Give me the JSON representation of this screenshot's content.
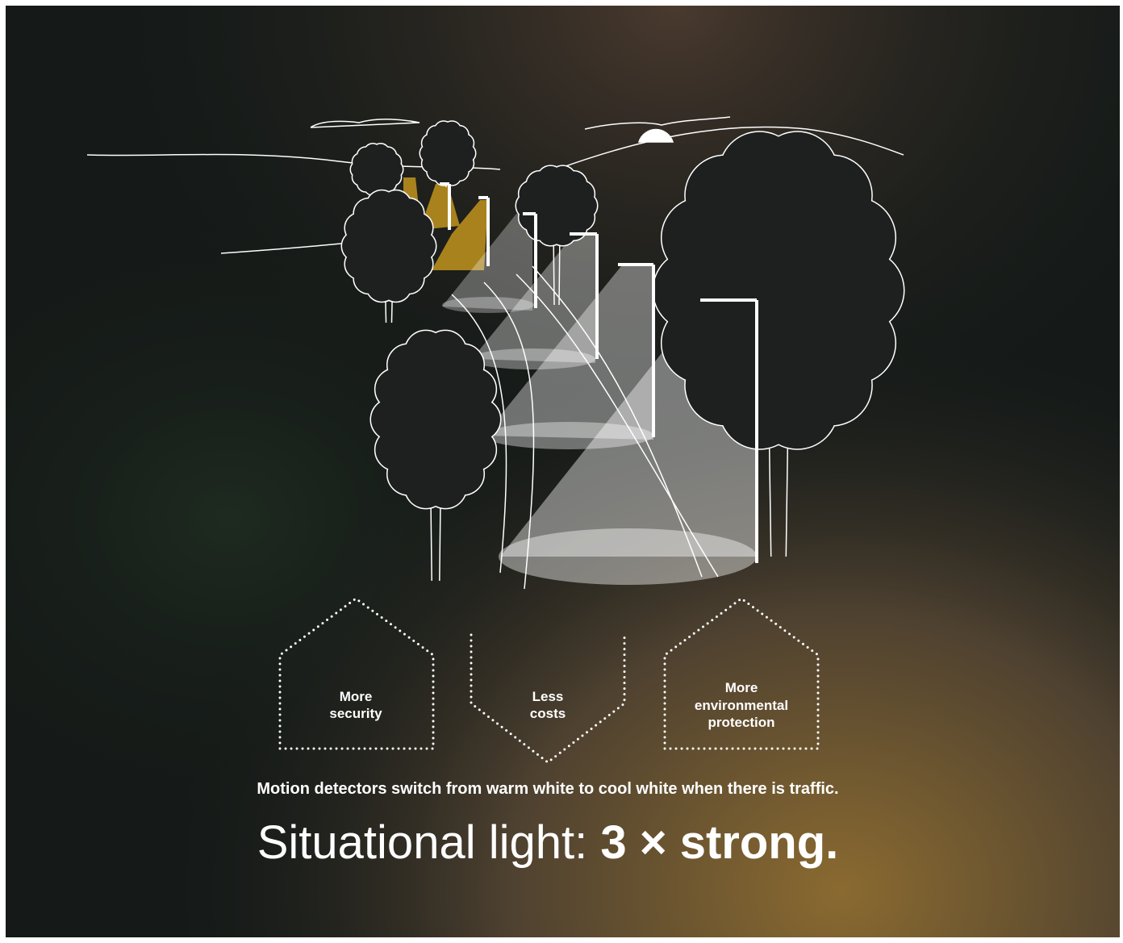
{
  "badges": [
    {
      "lines": [
        "More",
        "security"
      ]
    },
    {
      "lines": [
        "Less",
        "costs"
      ]
    },
    {
      "lines": [
        "More",
        "environmental",
        "protection"
      ]
    }
  ],
  "caption": "Motion detectors switch from warm white to cool white when there is traffic.",
  "headline": {
    "regular": "Situational light:",
    "bold": "3 × strong."
  }
}
